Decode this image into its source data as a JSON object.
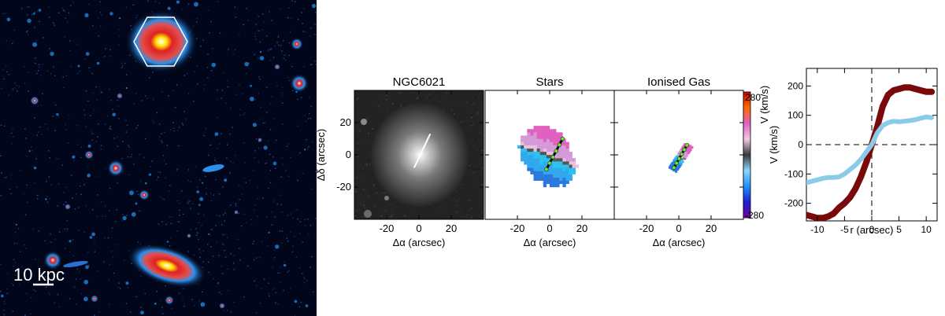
{
  "image_panel": {
    "scalebar_label": "10 kpc"
  },
  "colors": {
    "sky": "#02061a",
    "halo": "#1e8ee8",
    "core": "#d0202a",
    "approaching": "#34b4ec",
    "receding": "#d48cd0",
    "stars_curve": "#7a0a0a",
    "gas_curve": "#8ccbe8"
  },
  "chart_data": [
    {
      "type": "image",
      "title": "NGC6021",
      "xlabel": "Δα  (arcsec)",
      "ylabel": "Δδ  (arcsec)",
      "xlim": [
        -40,
        40
      ],
      "ylim": [
        -40,
        40
      ],
      "xticks": [
        -20,
        0,
        20
      ],
      "yticks": [
        -20,
        0,
        20
      ],
      "slit": {
        "x": [
          -3,
          7
        ],
        "y": [
          -8,
          13
        ]
      }
    },
    {
      "type": "heatmap",
      "title": "Stars",
      "xlabel": "Δα  (arcsec)",
      "xlim": [
        -40,
        40
      ],
      "ylim": [
        -40,
        40
      ],
      "xticks": [
        -20,
        0,
        20
      ],
      "kinematic_axis": {
        "x": [
          -2,
          8
        ],
        "y": [
          -9,
          10
        ]
      }
    },
    {
      "type": "heatmap",
      "title": "Ionised Gas",
      "xlabel": "Δα  (arcsec)",
      "xlim": [
        -40,
        40
      ],
      "ylim": [
        -40,
        40
      ],
      "xticks": [
        -20,
        0,
        20
      ],
      "kinematic_axis": {
        "x": [
          -3,
          5
        ],
        "y": [
          -8,
          6
        ]
      }
    },
    {
      "type": "colorbar",
      "label": "V  (km/s)",
      "range": [
        -280,
        280
      ],
      "tick_labels": [
        "280",
        "-280"
      ],
      "stops": [
        "#d10000",
        "#ff6a00",
        "#e060c0",
        "#f0c8e8",
        "#3a3a3a",
        "#8ad8ff",
        "#2090ff",
        "#2020d0",
        "#7000a0"
      ]
    },
    {
      "type": "line",
      "xlabel": "r (arcsec)",
      "ylabel": "V (km/s)",
      "xlim": [
        -12,
        12
      ],
      "ylim": [
        -260,
        260
      ],
      "xticks": [
        -10,
        -5,
        0,
        5,
        10
      ],
      "yticks": [
        -200,
        -100,
        0,
        100,
        200
      ],
      "series": [
        {
          "x": [
            -12,
            -11,
            -10,
            -9,
            -8,
            -7,
            -6,
            -5,
            -4,
            -3,
            -2,
            -1,
            0,
            1,
            2,
            3,
            4,
            5,
            6,
            7,
            8,
            9,
            10,
            11
          ],
          "y": [
            -240,
            -245,
            -250,
            -250,
            -245,
            -235,
            -215,
            -200,
            -180,
            -150,
            -110,
            -60,
            0,
            60,
            130,
            170,
            185,
            190,
            195,
            195,
            190,
            185,
            180,
            180
          ]
        },
        {
          "x": [
            -12,
            -11,
            -10,
            -9,
            -8,
            -7,
            -6,
            -5,
            -4,
            -3,
            -2,
            -1,
            0,
            1,
            2,
            3,
            4,
            5,
            6,
            7,
            8,
            9,
            10,
            11
          ],
          "y": [
            -130,
            -125,
            -120,
            -115,
            -112,
            -112,
            -110,
            -100,
            -85,
            -70,
            -50,
            -25,
            0,
            40,
            65,
            75,
            80,
            78,
            80,
            82,
            85,
            90,
            95,
            92
          ]
        }
      ]
    }
  ]
}
